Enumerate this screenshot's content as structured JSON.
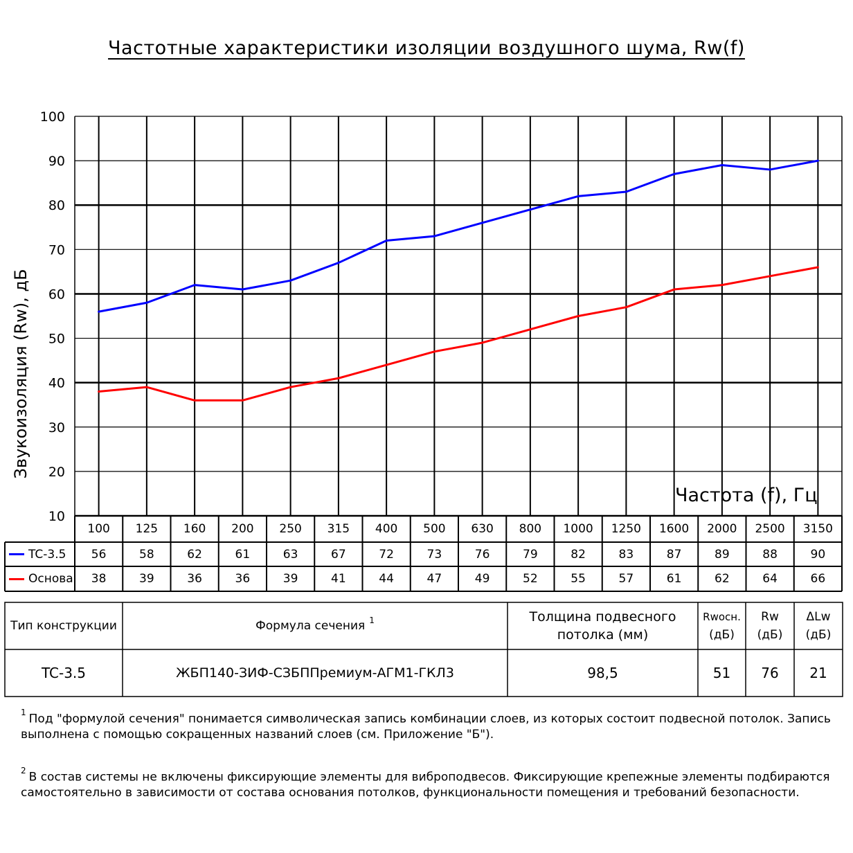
{
  "title": "Частотные характеристики изоляции воздушного шума, Rw(f)",
  "chart_data": {
    "type": "line",
    "title": "Частотные характеристики изоляции воздушного шума, Rw(f)",
    "xlabel": "Частота (f), Гц",
    "ylabel": "Звукоизоляция (Rw), дБ",
    "ylim": [
      10,
      100
    ],
    "yticks": [
      "100",
      "90",
      "80",
      "70",
      "60",
      "50",
      "40",
      "30",
      "20",
      "10"
    ],
    "categories": [
      "100",
      "125",
      "160",
      "200",
      "250",
      "315",
      "400",
      "500",
      "630",
      "800",
      "1000",
      "1250",
      "1600",
      "2000",
      "2500",
      "3150"
    ],
    "grid": true,
    "series": [
      {
        "name": "TC-3.5",
        "color": "#0000ff",
        "values": [
          56,
          58,
          62,
          61,
          63,
          67,
          72,
          73,
          76,
          79,
          82,
          83,
          87,
          89,
          88,
          90
        ]
      },
      {
        "name": "Основа",
        "color": "#ff0000",
        "values": [
          38,
          39,
          36,
          36,
          39,
          41,
          44,
          47,
          49,
          52,
          55,
          57,
          61,
          62,
          64,
          66
        ]
      }
    ]
  },
  "table": {
    "headers": {
      "type": "Тип конструкции",
      "formula": "Формула сечения",
      "formula_sup": "1",
      "thickness": "Толщина подвесного потолка (мм)",
      "rw_base": "Rwосн.",
      "rw_base_unit": "(дБ)",
      "rw": "Rw",
      "rw_unit": "(дБ)",
      "dlw": "ΔLw",
      "dlw_unit": "(дБ)"
    },
    "row": {
      "type": "TC-3.5",
      "formula": "ЖБП140-ЗИФ-СЗБППремиум-АГМ1-ГКЛ3",
      "thickness": "98,5",
      "rw_base": "51",
      "rw": "76",
      "dlw": "21"
    }
  },
  "notes": [
    {
      "sup": "1",
      "text": "Под \"формулой сечения\" понимается символическая запись комбинации слоев, из которых состоит подвесной потолок. Запись выполнена с помощью сокращенных названий слоев (см. Приложение \"Б\")."
    },
    {
      "sup": "2",
      "text": "В состав системы не включены фиксирующие элементы для виброподвесов. Фиксирующие крепежные элементы подбираются самостоятельно в зависимости от состава основания потолков, функциональности помещения и требований безопасности."
    }
  ]
}
